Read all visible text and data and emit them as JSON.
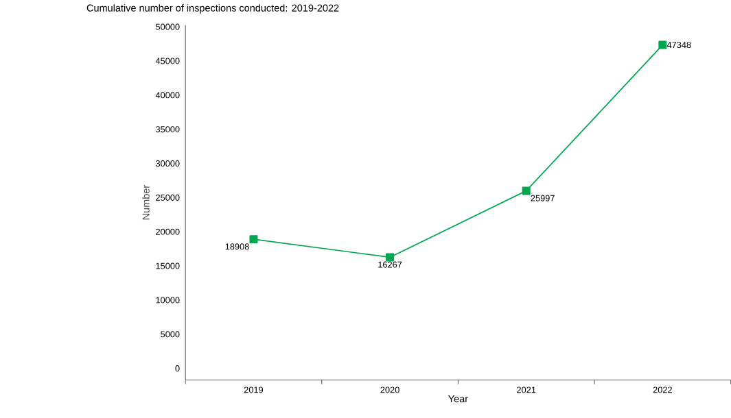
{
  "chart_data": {
    "type": "line",
    "title": "Cumulative number of inspections conducted: 2019-2022",
    "xlabel": "Year",
    "ylabel": "Number",
    "categories": [
      "2019",
      "2020",
      "2021",
      "2022"
    ],
    "series": [
      {
        "color": "#00a651",
        "values": [
          18908,
          16267,
          25997,
          47348
        ]
      }
    ],
    "ylim": [
      -1700,
      50250
    ],
    "yticks": [
      0,
      5000,
      10000,
      15000,
      20000,
      25000,
      30000,
      35000,
      40000,
      45000,
      50000
    ],
    "marker": "square",
    "line_style": "solid",
    "data_labels": true,
    "grid": false
  }
}
